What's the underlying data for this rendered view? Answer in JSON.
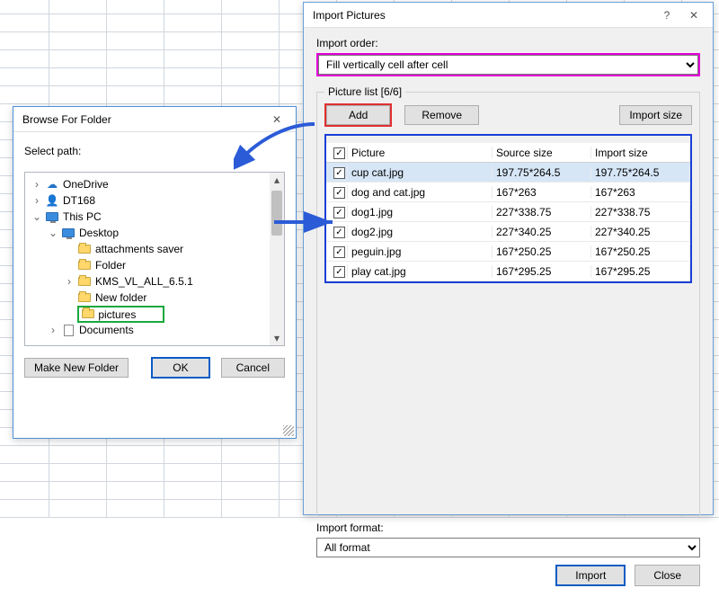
{
  "import_dialog": {
    "title": "Import Pictures",
    "order_label": "Import order:",
    "order_value": "Fill vertically cell after cell",
    "legend": "Picture list [6/6]",
    "add": "Add",
    "remove": "Remove",
    "import_size": "Import size",
    "headers": {
      "picture": "Picture",
      "source": "Source size",
      "importsz": "Import size"
    },
    "rows": [
      {
        "name": "cup cat.jpg",
        "src": "197.75*264.5",
        "imp": "197.75*264.5",
        "selected": true
      },
      {
        "name": "dog and cat.jpg",
        "src": "167*263",
        "imp": "167*263",
        "selected": false
      },
      {
        "name": "dog1.jpg",
        "src": "227*338.75",
        "imp": "227*338.75",
        "selected": false
      },
      {
        "name": "dog2.jpg",
        "src": "227*340.25",
        "imp": "227*340.25",
        "selected": false
      },
      {
        "name": "peguin.jpg",
        "src": "167*250.25",
        "imp": "167*250.25",
        "selected": false
      },
      {
        "name": "play cat.jpg",
        "src": "167*295.25",
        "imp": "167*295.25",
        "selected": false
      }
    ],
    "format_label": "Import format:",
    "format_value": "All format",
    "import_btn": "Import",
    "close_btn": "Close"
  },
  "browse_dialog": {
    "title": "Browse For Folder",
    "select_path": "Select path:",
    "tree": [
      {
        "indent": 0,
        "twisty": ">",
        "icon": "cloud",
        "label": "OneDrive"
      },
      {
        "indent": 0,
        "twisty": ">",
        "icon": "user",
        "label": "DT168"
      },
      {
        "indent": 0,
        "twisty": "v",
        "icon": "monitor",
        "label": "This PC"
      },
      {
        "indent": 1,
        "twisty": "v",
        "icon": "monitor",
        "label": "Desktop"
      },
      {
        "indent": 2,
        "twisty": "",
        "icon": "folder",
        "label": "attachments saver"
      },
      {
        "indent": 2,
        "twisty": "",
        "icon": "folder",
        "label": "Folder"
      },
      {
        "indent": 2,
        "twisty": ">",
        "icon": "folder",
        "label": "KMS_VL_ALL_6.5.1"
      },
      {
        "indent": 2,
        "twisty": "",
        "icon": "folder",
        "label": "New folder"
      },
      {
        "indent": 2,
        "twisty": "",
        "icon": "folder",
        "label": "pictures",
        "hl": true
      },
      {
        "indent": 1,
        "twisty": ">",
        "icon": "doc",
        "label": "Documents"
      }
    ],
    "make_new": "Make New Folder",
    "ok": "OK",
    "cancel": "Cancel"
  },
  "colors": {
    "hl_magenta": "#e200d6",
    "hl_red": "#e03030",
    "hl_blue": "#1a3fd6",
    "hl_green": "#1aa83c",
    "arrow": "#2b5bd7"
  }
}
